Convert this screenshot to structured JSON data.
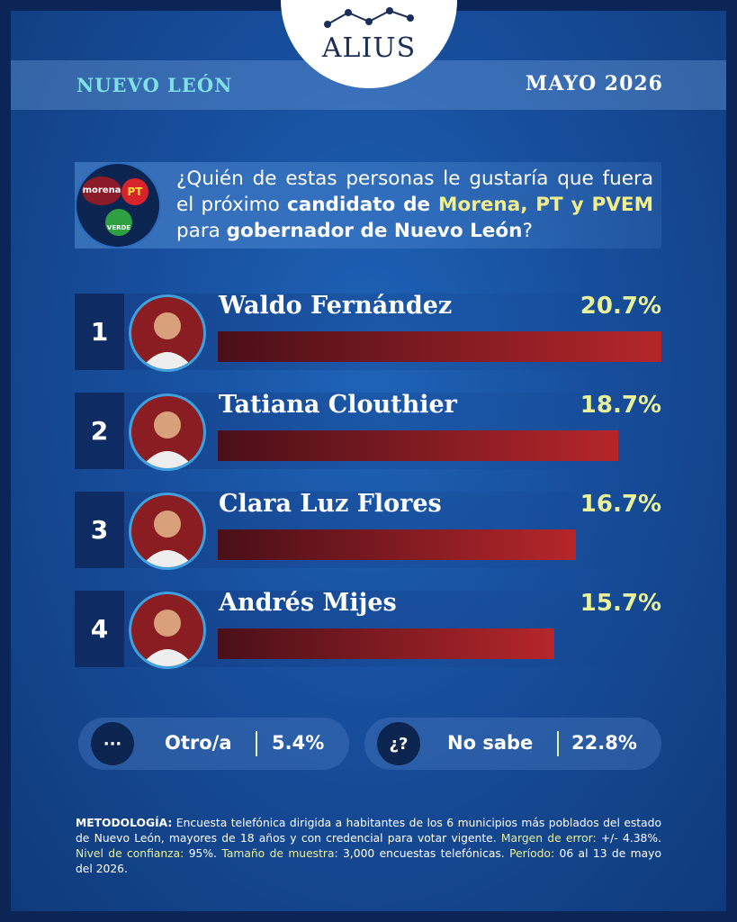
{
  "chart_data": {
    "type": "bar",
    "brand": "ALIUS",
    "region": "NUEVO LEÓN",
    "date": "MAYO 2026",
    "party_logos": [
      "morena",
      "PT",
      "VERDE"
    ],
    "question": [
      "¿Quién de estas personas le gustaría que fuera el próximo ",
      "candidato de ",
      "Morena, PT y PVEM",
      " para ",
      "gobernador de Nuevo León",
      "?"
    ],
    "ranks": [
      "1",
      "2",
      "3",
      "4"
    ],
    "categories": [
      "Waldo Fernández",
      "Tatiana Clouthier",
      "Clara Luz Flores",
      "Andrés Mijes"
    ],
    "values": [
      20.7,
      18.7,
      16.7,
      15.7
    ],
    "value_labels": [
      "20.7%",
      "18.7%",
      "16.7%",
      "15.7%"
    ],
    "color": "#b5262a",
    "others": [
      {
        "icon": "···",
        "label": "Otro/a",
        "value": 5.4,
        "value_label": "5.4%"
      },
      {
        "icon": "¿?",
        "label": "No sabe",
        "value": 22.8,
        "value_label": "22.8%"
      }
    ],
    "methodology": [
      "METODOLOGÍA:",
      " Encuesta telefónica dirigida a habitantes de los 6 municipios más poblados del estado de Nuevo León, mayores de 18 años y con credencial para votar vigente. ",
      "Margen de error:",
      " +/- 4.38%. ",
      "Nivel de confianza:",
      " 95%. ",
      "Tamaño de muestra:",
      " 3,000 encuestas telefónicas. ",
      "Período:",
      " 06 al 13 de mayo del 2026."
    ]
  }
}
